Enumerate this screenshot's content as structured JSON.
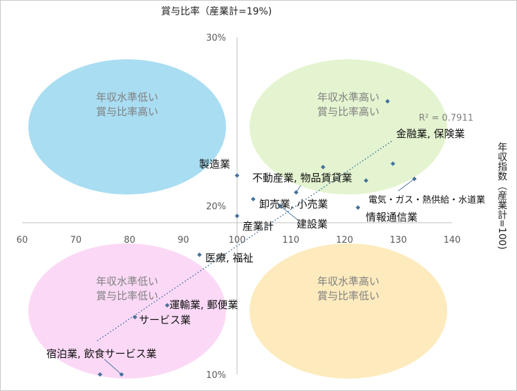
{
  "chart_data": {
    "type": "scatter",
    "title": "賞与比率（産業計=19%)",
    "ylabel": "年収指数（産業計=100)",
    "xlim": [
      60,
      140
    ],
    "ylim": [
      0.1,
      0.3
    ],
    "x_ticks": [
      "60",
      "70",
      "80",
      "90",
      "100",
      "110",
      "120",
      "130",
      "140"
    ],
    "y_ticks": [
      "10%",
      "20%",
      "30%"
    ],
    "x_tick_values": [
      60,
      70,
      80,
      90,
      100,
      110,
      120,
      130,
      140
    ],
    "y_tick_values": [
      0.1,
      0.2,
      0.3
    ],
    "axis_cross": {
      "x": 100,
      "y": 0.19
    },
    "grid": false,
    "point_color": "#44729a",
    "trendline": {
      "type": "linear",
      "r2_label": "R² = 0.7911",
      "color": "#2e6496"
    },
    "quadrants": [
      {
        "line1": "年収水準低い",
        "line2": "賞与比率高い",
        "color": "#a9ddf2"
      },
      {
        "line1": "年収水準高い",
        "line2": "賞与比率高い",
        "color": "#e4f4d0"
      },
      {
        "line1": "年収水準低い",
        "line2": "賞与比率低い",
        "color": "#fbd9f6"
      },
      {
        "line1": "年収水準高い",
        "line2": "賞与比率低い",
        "color": "#fdebbe"
      }
    ],
    "points": [
      {
        "x": 100,
        "y": 0.218,
        "label": "製造業"
      },
      {
        "x": 128,
        "y": 0.262,
        "label": "金融業, 保険業"
      },
      {
        "x": 133,
        "y": 0.216,
        "label": "電気・ガス・熱供給・水道業"
      },
      {
        "x": 129,
        "y": 0.225,
        "label": ""
      },
      {
        "x": 116,
        "y": 0.223,
        "label": ""
      },
      {
        "x": 124,
        "y": 0.215,
        "label": ""
      },
      {
        "x": 111,
        "y": 0.208,
        "label": "不動産業, 物品賃貸業"
      },
      {
        "x": 103,
        "y": 0.204,
        "label": "卸売業, 小売業"
      },
      {
        "x": 108,
        "y": 0.2,
        "label": "建設業"
      },
      {
        "x": 122.5,
        "y": 0.199,
        "label": "情報通信業"
      },
      {
        "x": 100,
        "y": 0.194,
        "label": "産業計"
      },
      {
        "x": 93,
        "y": 0.171,
        "label": "医療, 福祉"
      },
      {
        "x": 87,
        "y": 0.141,
        "label": "運輸業, 郵便業"
      },
      {
        "x": 81,
        "y": 0.134,
        "label": "サービス業"
      },
      {
        "x": 74.5,
        "y": 0.1,
        "label": ""
      },
      {
        "x": 78.5,
        "y": 0.1,
        "label": "宿泊業, 飲食サービス業"
      }
    ]
  }
}
